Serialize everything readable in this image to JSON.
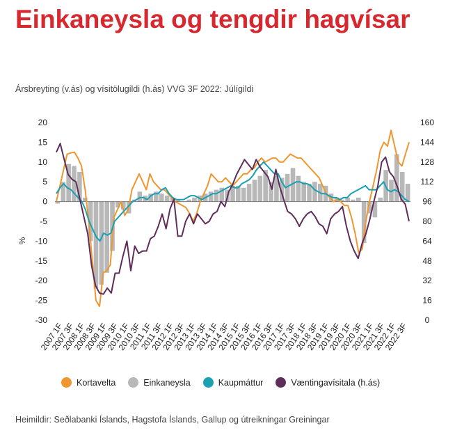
{
  "title": "Einkaneysla og tengdir hagvísar",
  "subtitle": "Ársbreyting (v.ás) og vísitölugildi (h.ás)   VVG 3F 2022: Júlígildi",
  "source": "Heimildir: Seðlabanki Íslands, Hagstofa Íslands, Gallup og útreikningar Greiningar",
  "colors": {
    "title": "#d7282f",
    "kortavelta": "#f0962f",
    "einkaneysla": "#b8b8b8",
    "kaupmattur": "#1aa0b2",
    "vaenting": "#5e2d5a"
  },
  "chart_data": {
    "type": "bar",
    "left_axis": {
      "label": "%",
      "ticks": [
        20,
        15,
        10,
        5,
        0,
        -5,
        -10,
        -15,
        -20,
        -25,
        -30
      ],
      "ylim": [
        -30,
        20
      ]
    },
    "right_axis": {
      "ticks": [
        160,
        144,
        128,
        112,
        96,
        80,
        64,
        48,
        32,
        16,
        0
      ],
      "ylim": [
        0,
        160
      ]
    },
    "x_tick_labels": [
      "2007 1F",
      "2007 3F",
      "2008 1F",
      "2008 3F",
      "2009 1F",
      "2009 3F",
      "2010 1F",
      "2010 3F",
      "2011 1F",
      "2011 3F",
      "2012 1F",
      "2012 3F",
      "2013 1F",
      "2013 3F",
      "2014 1F",
      "2014 3F",
      "2015 1F",
      "2015 3F",
      "2016 1F",
      "2016 3F",
      "2017 1F",
      "2017 3F",
      "2018 1F",
      "2018 3F",
      "2019 1F",
      "2019 3F",
      "2020 1F",
      "2020 3F",
      "2021 1F",
      "2021 3F",
      "2022 1F",
      "2022 3F"
    ],
    "legend": [
      "Kortavelta",
      "Einkaneysla",
      "Kaupmáttur",
      "Væntingavísitala (h.ás)"
    ],
    "einkaneysla_quarterly": [
      -0.5,
      5,
      9.5,
      9,
      7.5,
      1,
      -10,
      -22,
      -21,
      -18,
      -12.5,
      -1.5,
      -2,
      -3,
      0.5,
      2.5,
      1.5,
      2,
      2.5,
      2,
      1.5,
      1,
      0.5,
      0,
      0.5,
      1,
      1.5,
      2,
      2.5,
      3,
      3.5,
      3,
      4,
      4,
      3.5,
      4.5,
      5.5,
      6.5,
      8,
      5,
      6.5,
      6,
      7,
      8.5,
      6.5,
      5,
      4.5,
      5,
      4.5,
      4,
      2,
      1,
      0.5,
      1,
      0.5,
      1,
      -10.5,
      -3,
      -4,
      1,
      8,
      5.5,
      12,
      7.5,
      4.5
    ],
    "kortavelta_monthly": [
      0,
      4,
      8,
      12,
      12.3,
      12.5,
      11,
      9,
      3,
      -5,
      -15,
      -25,
      -26.5,
      -18,
      -17.5,
      -16,
      -4,
      -2,
      0,
      -3.5,
      -2,
      3,
      5,
      7,
      5,
      3,
      7,
      5,
      4,
      3,
      3,
      2,
      1,
      0,
      -0.5,
      -1,
      -1.5,
      -3,
      -5,
      -3,
      0,
      2,
      4,
      7,
      6,
      5,
      5,
      6,
      5,
      4,
      5,
      6,
      7,
      7,
      8,
      8.5,
      10,
      11,
      10,
      10.5,
      11,
      11,
      10,
      10,
      11,
      12,
      11.5,
      11,
      11,
      10,
      9,
      8,
      7,
      6,
      4,
      2,
      1,
      0,
      0.5,
      0,
      -1,
      -1,
      -4,
      -8,
      -13,
      -12,
      -5,
      0,
      4,
      8,
      13,
      15,
      14,
      18,
      14,
      10,
      9,
      12,
      15
    ],
    "kaupmattur_monthly": [
      2,
      3.5,
      4.5,
      3.5,
      3,
      2,
      1,
      0,
      -2,
      -5,
      -7,
      -9,
      -10,
      -8,
      -8.5,
      -8,
      -5,
      -4,
      -3,
      -2,
      -1,
      0,
      0.5,
      1,
      1,
      0.5,
      1.5,
      2,
      2,
      3,
      3.5,
      2,
      1,
      0.5,
      0.5,
      0.5,
      1,
      1.5,
      1.5,
      1,
      0.5,
      1,
      1.5,
      2,
      2,
      2.5,
      3,
      3.5,
      4,
      3.5,
      3.5,
      4.5,
      5,
      5.5,
      6.5,
      8,
      9,
      10,
      9,
      8,
      7,
      7,
      5,
      3.5,
      4,
      4.5,
      5,
      5,
      4.5,
      4.5,
      4,
      3,
      2.5,
      2,
      2,
      1.5,
      1,
      1,
      0.5,
      1,
      1,
      2,
      2.5,
      3,
      3.5,
      4,
      3,
      3,
      3,
      4,
      5,
      3,
      2.5,
      3,
      2.5,
      1.5,
      0.5,
      0
    ],
    "vaenting_monthly": [
      136,
      143,
      130,
      118,
      114,
      112,
      98,
      84,
      70,
      44,
      28,
      22,
      21,
      26,
      22,
      38,
      38,
      52,
      64,
      40,
      60,
      54,
      56,
      56,
      66,
      68,
      76,
      86,
      74,
      90,
      98,
      68,
      68,
      80,
      86,
      78,
      86,
      82,
      78,
      80,
      86,
      88,
      96,
      92,
      104,
      110,
      118,
      124,
      130,
      126,
      122,
      130,
      124,
      120,
      116,
      106,
      122,
      108,
      98,
      88,
      86,
      82,
      76,
      82,
      86,
      88,
      84,
      78,
      76,
      70,
      82,
      86,
      88,
      92,
      76,
      64,
      56,
      50,
      62,
      70,
      82,
      96,
      108,
      128,
      132,
      120,
      116,
      108,
      98,
      94,
      80
    ]
  }
}
